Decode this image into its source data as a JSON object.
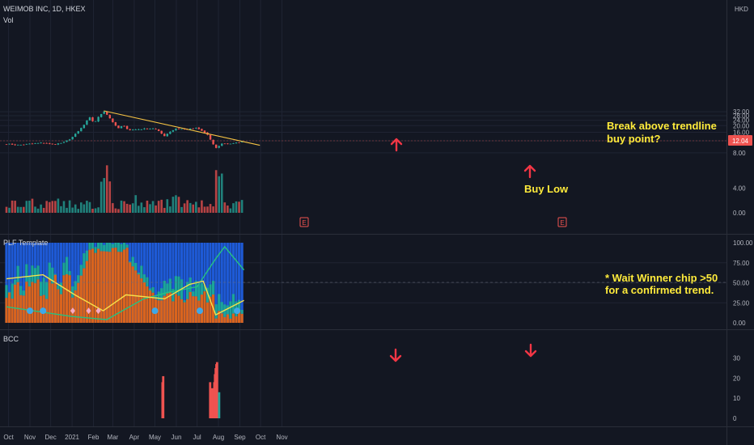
{
  "header": {
    "symbol": "WEIMOB INC, 1D, HKEX",
    "volume_label": "Vol",
    "currency": "HKD"
  },
  "panes": {
    "indicator1": "PLF Template",
    "indicator2": "BCC"
  },
  "annotations": {
    "buy_low": "Buy Low",
    "breakout_line1": "Break above trendline",
    "breakout_line2": "buy point?",
    "chip_line1": "* Wait Winner chip >50",
    "chip_line2": "for a confirmed trend."
  },
  "colors": {
    "up": "#26a69a",
    "down": "#ef5350",
    "trendline": "#f6c343",
    "annotation": "#ffeb3b",
    "arrow": "#f23645",
    "blue": "#1e5ad6",
    "orange": "#d9641e"
  },
  "chart_data": [
    {
      "type": "candlestick",
      "title": "WEIMOB INC, 1D, HKEX",
      "ylabel": "HKD",
      "scale": "log",
      "yticks": [
        8.0,
        12.0,
        16.0,
        20.0,
        24.0,
        28.0,
        32.0
      ],
      "ytick_labels": [
        "8.00",
        "12.00",
        "16.00",
        "20.00",
        "24.00",
        "28.00",
        "32.00"
      ],
      "last_price": "12.04",
      "x_labels": [
        "Oct",
        "Nov",
        "Dec",
        "2021",
        "Feb",
        "Mar",
        "Apr",
        "May",
        "Jun",
        "Jul",
        "Aug",
        "Sep",
        "Oct",
        "Nov"
      ],
      "close_path": [
        {
          "x": "2020-09-28",
          "y": 10.8
        },
        {
          "x": "2020-10-15",
          "y": 10.4
        },
        {
          "x": "2020-11-01",
          "y": 10.8
        },
        {
          "x": "2020-11-20",
          "y": 11.2
        },
        {
          "x": "2020-12-05",
          "y": 10.6
        },
        {
          "x": "2020-12-20",
          "y": 11.3
        },
        {
          "x": "2020-12-31",
          "y": 13.2
        },
        {
          "x": "2021-01-10",
          "y": 16.5
        },
        {
          "x": "2021-01-20",
          "y": 21.5
        },
        {
          "x": "2021-01-26",
          "y": 26.5
        },
        {
          "x": "2021-02-02",
          "y": 22.0
        },
        {
          "x": "2021-02-08",
          "y": 26.5
        },
        {
          "x": "2021-02-16",
          "y": 33.0
        },
        {
          "x": "2021-02-22",
          "y": 28.0
        },
        {
          "x": "2021-03-01",
          "y": 22.5
        },
        {
          "x": "2021-03-08",
          "y": 18.0
        },
        {
          "x": "2021-03-15",
          "y": 20.0
        },
        {
          "x": "2021-03-25",
          "y": 17.3
        },
        {
          "x": "2021-04-10",
          "y": 17.8
        },
        {
          "x": "2021-04-30",
          "y": 18.3
        },
        {
          "x": "2021-05-10",
          "y": 15.5
        },
        {
          "x": "2021-05-14",
          "y": 14.0
        },
        {
          "x": "2021-05-22",
          "y": 16.2
        },
        {
          "x": "2021-06-01",
          "y": 18.3
        },
        {
          "x": "2021-06-15",
          "y": 17.5
        },
        {
          "x": "2021-07-01",
          "y": 18.5
        },
        {
          "x": "2021-07-10",
          "y": 16.2
        },
        {
          "x": "2021-07-18",
          "y": 14.3
        },
        {
          "x": "2021-07-22",
          "y": 11.2
        },
        {
          "x": "2021-07-27",
          "y": 9.8
        },
        {
          "x": "2021-07-30",
          "y": 9.2
        },
        {
          "x": "2021-08-05",
          "y": 11.0
        },
        {
          "x": "2021-08-15",
          "y": 10.8
        },
        {
          "x": "2021-08-25",
          "y": 11.2
        },
        {
          "x": "2021-09-01",
          "y": 11.2
        },
        {
          "x": "2021-09-07",
          "y": 12.3
        }
      ],
      "trendline": [
        {
          "x": "2021-02-16",
          "y": 33.0
        },
        {
          "x": "2021-09-30",
          "y": 10.3
        }
      ]
    },
    {
      "type": "bar",
      "title": "Vol",
      "yticks": [
        0.0,
        4.0
      ],
      "ytick_labels": [
        "0.00",
        "4.00"
      ],
      "note": "volume bars colored by candle direction; spikes late Feb and late Jul"
    },
    {
      "type": "area",
      "title": "PLF Template",
      "yticks": [
        0,
        25,
        50,
        75,
        100
      ],
      "ytick_labels": [
        "0.00",
        "25.00",
        "50.00",
        "75.00",
        "100.00"
      ],
      "series": [
        {
          "name": "",
          "color": "#26c281",
          "points": [
            {
              "x": "2020-09-28",
              "y": 20
            },
            {
              "x": "2020-12-31",
              "y": 8
            },
            {
              "x": "2021-02-20",
              "y": 4
            },
            {
              "x": "2021-04-15",
              "y": 30
            },
            {
              "x": "2021-05-20",
              "y": 38
            },
            {
              "x": "2021-07-01",
              "y": 45
            },
            {
              "x": "2021-07-28",
              "y": 80
            },
            {
              "x": "2021-08-10",
              "y": 95
            },
            {
              "x": "2021-09-07",
              "y": 66
            }
          ]
        },
        {
          "name": "",
          "color": "#f6e14a",
          "points": [
            {
              "x": "2020-09-28",
              "y": 55
            },
            {
              "x": "2020-11-20",
              "y": 60
            },
            {
              "x": "2021-01-05",
              "y": 35
            },
            {
              "x": "2021-02-15",
              "y": 15
            },
            {
              "x": "2021-03-20",
              "y": 35
            },
            {
              "x": "2021-05-15",
              "y": 30
            },
            {
              "x": "2021-06-20",
              "y": 48
            },
            {
              "x": "2021-07-10",
              "y": 52
            },
            {
              "x": "2021-07-28",
              "y": 10
            },
            {
              "x": "2021-09-07",
              "y": 28
            }
          ]
        }
      ]
    },
    {
      "type": "bar",
      "title": "BCC",
      "yticks": [
        0,
        10,
        20,
        30
      ],
      "ytick_labels": [
        "0",
        "10",
        "20",
        "30"
      ],
      "series": [
        {
          "name": "",
          "points": [
            {
              "x": "2021-05-12",
              "y": 18
            },
            {
              "x": "2021-05-13",
              "y": 21
            },
            {
              "x": "2021-07-20",
              "y": 18
            },
            {
              "x": "2021-07-22",
              "y": 10
            },
            {
              "x": "2021-07-23",
              "y": 15
            },
            {
              "x": "2021-07-26",
              "y": 18
            },
            {
              "x": "2021-07-27",
              "y": 22
            },
            {
              "x": "2021-07-28",
              "y": 25
            },
            {
              "x": "2021-07-29",
              "y": 27
            },
            {
              "x": "2021-07-30",
              "y": 28
            },
            {
              "x": "2021-08-02",
              "y": 13
            }
          ]
        }
      ]
    }
  ]
}
